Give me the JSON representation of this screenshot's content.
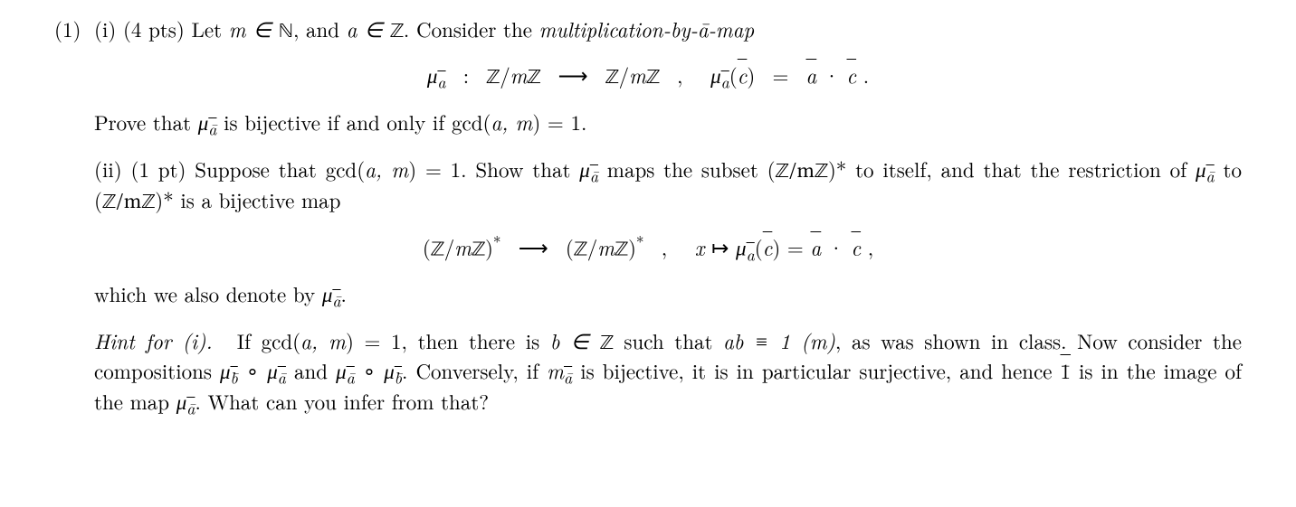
{
  "problem": {
    "number_label": "(1)",
    "part_i": {
      "label": "(i)",
      "points": "(4 pts)",
      "intro_prefix": "Let ",
      "intro_m": "m ∈ ",
      "intro_nat": "ℕ",
      "intro_mid": ", and ",
      "intro_a": "a ∈ ",
      "intro_int": "ℤ",
      "intro_suffix1": ". Consider the ",
      "term_italic": "multiplication-by-ā-map",
      "display": "μ_ā : ℤ/mℤ → ℤ/mℤ ,   μ_ā(c̄) = ā · c̄ .",
      "prove_prefix": "Prove that ",
      "prove_mu": "μ",
      "prove_mu_sub": "ā",
      "prove_mid": " is bijective if and only if gcd(",
      "prove_args": "a, m",
      "prove_suffix": ") = 1."
    },
    "part_ii": {
      "label": "(ii)",
      "points": "(1 pt)",
      "text_a": "Suppose that gcd(",
      "args": "a, m",
      "text_b": ") = 1. Show that ",
      "mu": "μ",
      "mu_sub": "ā",
      "text_c": " maps the subset (",
      "ring": "ℤ/mℤ",
      "text_d": ")* to itself, and that the restriction of ",
      "text_e": " to (",
      "text_f": ")* is a bijective map",
      "display": "(ℤ/mℤ)* → (ℤ/mℤ)* ,   x ↦ μ_ā(c̄) = ā · c̄ ,",
      "tail_a": "which we also denote by ",
      "tail_b": "."
    },
    "hint": {
      "label": "Hint for (i).",
      "text_a": "If gcd(",
      "args": "a, m",
      "text_b": ") = 1, then there is ",
      "b_in": "b ∈ ",
      "int": "ℤ",
      "text_c": " such that ",
      "cong": "ab ≡ 1 (m)",
      "text_d": ", as was shown in class. Now consider the compositions ",
      "mu": "μ",
      "sub_b": "b̄",
      "sub_a": "ā",
      "circ": " ∘ ",
      "text_e": " and ",
      "text_f": ". Conversely, if ",
      "m_mu": "m",
      "text_g": " is bijective, it is in particular surjective, and hence ",
      "one_bar": "1̄",
      "text_h": " is in the image of the map ",
      "text_i": ". What can you infer from that?"
    }
  },
  "style": {
    "font_size_pt": 17,
    "text_color": "#000000",
    "background_color": "#ffffff"
  }
}
